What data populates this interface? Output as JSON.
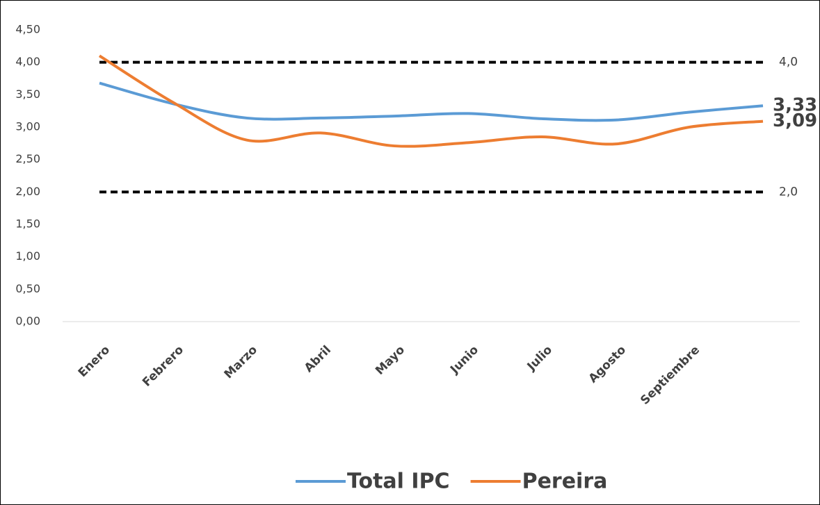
{
  "chart_data": {
    "type": "line",
    "categories": [
      "Enero",
      "Febrero",
      "Marzo",
      "Abril",
      "Mayo",
      "Junio",
      "Julio",
      "Agosto",
      "Septiembre",
      null
    ],
    "series": [
      {
        "name": "Total IPC",
        "color": "#5b9bd5",
        "values": [
          3.68,
          3.36,
          3.14,
          3.14,
          3.17,
          3.21,
          3.13,
          3.11,
          3.23,
          3.33
        ],
        "value_labels": [
          null,
          null,
          null,
          null,
          null,
          null,
          null,
          null,
          null,
          "3,33"
        ]
      },
      {
        "name": "Pereira",
        "color": "#ed7d31",
        "values": [
          4.1,
          3.38,
          2.8,
          2.91,
          2.71,
          2.76,
          2.85,
          2.74,
          3.0,
          3.09
        ],
        "value_labels": [
          null,
          null,
          null,
          null,
          null,
          null,
          null,
          null,
          null,
          "3,09"
        ]
      }
    ],
    "ylim": [
      0,
      4.5
    ],
    "yticks": [
      {
        "value": 0,
        "label": "0,00"
      },
      {
        "value": 0.5,
        "label": "0,50"
      },
      {
        "value": 1,
        "label": "1,00"
      },
      {
        "value": 1.5,
        "label": "1,50"
      },
      {
        "value": 2,
        "label": "2,00"
      },
      {
        "value": 2.5,
        "label": "2,50"
      },
      {
        "value": 3,
        "label": "3,00"
      },
      {
        "value": 3.5,
        "label": "3,50"
      },
      {
        "value": 4,
        "label": "4,00"
      },
      {
        "value": 4.5,
        "label": "4,50"
      }
    ],
    "reference_lines": [
      {
        "value": 4,
        "label": "4,0"
      },
      {
        "value": 2,
        "label": "2,0"
      }
    ],
    "grid": false,
    "legend": "bottom"
  }
}
